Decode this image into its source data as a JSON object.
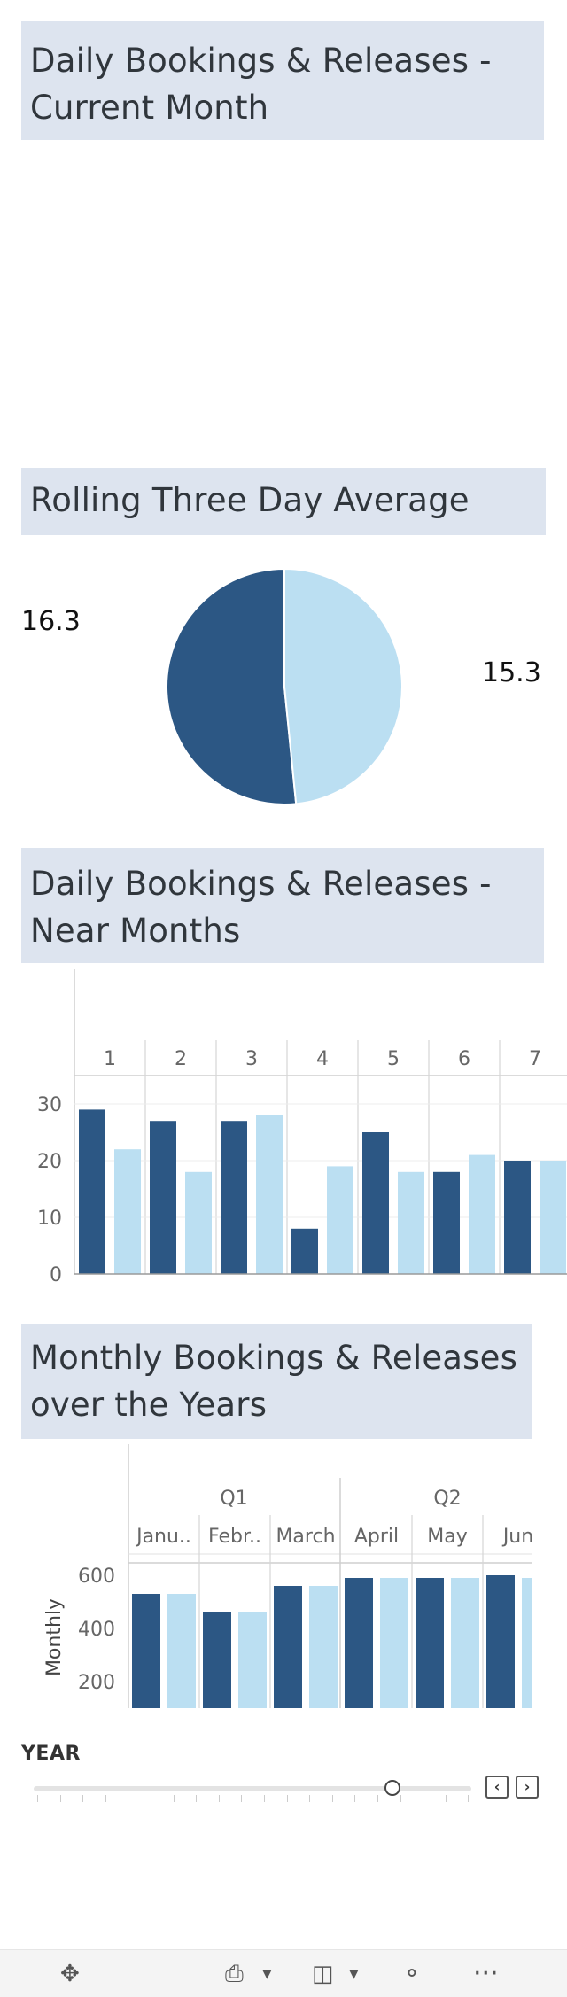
{
  "panels": {
    "current_month_title": "Daily Bookings & Releases - Current Month",
    "rolling_title": "Rolling Three Day Average",
    "near_months_title": "Daily Bookings & Releases - Near Months",
    "monthly_title": "Monthly Bookings & Releases over the Years"
  },
  "colors": {
    "bookings": "#2c5784",
    "releases": "#bbdff2",
    "header_bg": "#dde4ef"
  },
  "chart_data": [
    {
      "type": "pie",
      "title": "Rolling Three Day Average",
      "slices": [
        {
          "label": "16.3",
          "value": 16.3,
          "color": "#2c5784"
        },
        {
          "label": "15.3",
          "value": 15.3,
          "color": "#bbdff2"
        }
      ]
    },
    {
      "type": "bar",
      "title": "Daily Bookings & Releases - Near Months",
      "categories": [
        "1",
        "2",
        "3",
        "4",
        "5",
        "6",
        "7"
      ],
      "series": [
        {
          "values": [
            29,
            27,
            27,
            8,
            25,
            18,
            20
          ],
          "color": "#2c5784"
        },
        {
          "values": [
            22,
            18,
            28,
            19,
            18,
            21,
            20
          ],
          "color": "#bbdff2"
        }
      ],
      "yticks": [
        "0",
        "10",
        "20",
        "30"
      ],
      "ylim": [
        0,
        35
      ]
    },
    {
      "type": "bar",
      "title": "Monthly Bookings & Releases over the Years",
      "quarters": [
        "Q1",
        "Q2"
      ],
      "categories": [
        "Janu..",
        "Febr..",
        "March",
        "April",
        "May",
        "Jun"
      ],
      "series": [
        {
          "values": [
            530,
            460,
            560,
            590,
            590,
            600
          ],
          "color": "#2c5784"
        },
        {
          "values": [
            530,
            460,
            560,
            590,
            590,
            590
          ],
          "color": "#bbdff2"
        }
      ],
      "ylabel": "Monthly",
      "yticks": [
        "200",
        "400",
        "600"
      ]
    }
  ],
  "filter": {
    "label": "YEAR",
    "slider_value": 0.82
  },
  "toolbar": {
    "fit_icon": "move-icon",
    "download_icon": "download-icon",
    "device_icon": "device-icon",
    "share_icon": "share-icon",
    "more_icon": "more-icon"
  }
}
